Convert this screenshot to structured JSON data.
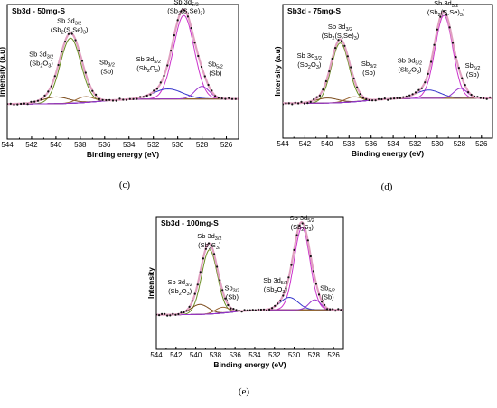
{
  "chart_data": [
    {
      "type": "line",
      "title": "Sb3d - 50mg-S",
      "caption": "(c)",
      "xlabel": "Binding energy (eV)",
      "ylabel": "Intensity (a.u)",
      "xlim": [
        544,
        525
      ],
      "x_ticks": [
        544,
        542,
        540,
        538,
        536,
        534,
        532,
        530,
        528,
        526
      ],
      "peaks": [
        {
          "center": 538.8,
          "height": 0.78,
          "width": 0.85,
          "color": "#6b8e23"
        },
        {
          "center": 529.5,
          "height": 1.0,
          "width": 0.85,
          "color": "#cc33cc"
        },
        {
          "center": 540.0,
          "height": 0.08,
          "width": 1.1,
          "color": "#7a4a1a"
        },
        {
          "center": 530.8,
          "height": 0.12,
          "width": 1.2,
          "color": "#3333cc"
        },
        {
          "center": 537.6,
          "height": 0.07,
          "width": 0.7,
          "color": "#996633"
        },
        {
          "center": 528.0,
          "height": 0.15,
          "width": 0.6,
          "color": "#9933cc"
        }
      ],
      "annotations": [
        {
          "line1": "Sb 3d",
          "sub1": "3/2",
          "line2": "(Sb",
          "sub2": "2",
          "line2b": "(S,Se)",
          "sub2b": "3",
          "line2c": ")",
          "x": 538.9,
          "y": 1.02
        },
        {
          "line1": "Sb 3d",
          "sub1": "5/2",
          "line2": "(Sb",
          "sub2": "2",
          "line2b": "(S,Se)",
          "sub2b": "3",
          "line2c": ")",
          "x": 529.3,
          "y": 1.25
        },
        {
          "line1": "Sb 3d",
          "sub1": "3/2",
          "line2": "(Sb",
          "sub2": "2",
          "line2b": "O",
          "sub2b": "3",
          "line2c": ")",
          "x": 541.2,
          "y": 0.62
        },
        {
          "line1": "Sb",
          "sub1": "3/2",
          "line2": "(Sb)",
          "sub2": "",
          "line2b": "",
          "sub2b": "",
          "line2c": "",
          "x": 535.8,
          "y": 0.52
        },
        {
          "line1": "Sb 3d",
          "sub1": "5/2",
          "line2": "(Sb",
          "sub2": "2",
          "line2b": "O",
          "sub2b": "3",
          "line2c": ")",
          "x": 532.4,
          "y": 0.56
        },
        {
          "line1": "Sb",
          "sub1": "5/2",
          "line2": "(Sb)",
          "sub2": "",
          "line2b": "",
          "sub2b": "",
          "line2c": "",
          "x": 526.9,
          "y": 0.5
        }
      ]
    },
    {
      "type": "line",
      "title": "Sb3d - 75mg-S",
      "caption": "(d)",
      "xlabel": "Binding energy (eV)",
      "ylabel": "Intensity (a.u)",
      "xlim": [
        544,
        525
      ],
      "x_ticks": [
        544,
        542,
        540,
        538,
        536,
        534,
        532,
        530,
        528,
        526
      ],
      "peaks": [
        {
          "center": 538.8,
          "height": 0.72,
          "width": 0.8,
          "color": "#6b8e23"
        },
        {
          "center": 529.4,
          "height": 1.0,
          "width": 0.8,
          "color": "#cc33cc"
        },
        {
          "center": 540.0,
          "height": 0.06,
          "width": 1.0,
          "color": "#7a4a1a"
        },
        {
          "center": 530.8,
          "height": 0.1,
          "width": 1.1,
          "color": "#3333cc"
        },
        {
          "center": 537.6,
          "height": 0.06,
          "width": 0.7,
          "color": "#996633"
        },
        {
          "center": 527.9,
          "height": 0.12,
          "width": 0.6,
          "color": "#9933cc"
        }
      ],
      "annotations": [
        {
          "line1": "Sb 3d",
          "sub1": "3/2",
          "line2": "(Sb",
          "sub2": "2",
          "line2b": "(S,Se)",
          "sub2b": "3",
          "line2c": ")",
          "x": 538.8,
          "y": 0.95
        },
        {
          "line1": "Sb 3d",
          "sub1": "5/2",
          "line2": "(Sb",
          "sub2": "2",
          "line2b": "(S,Se)",
          "sub2b": "3",
          "line2c": ")",
          "x": 529.2,
          "y": 1.23
        },
        {
          "line1": "Sb 3d",
          "sub1": "3/2",
          "line2": "(Sb",
          "sub2": "2",
          "line2b": "O",
          "sub2b": "3",
          "line2c": ")",
          "x": 541.6,
          "y": 0.6
        },
        {
          "line1": "Sb",
          "sub1": "3/2",
          "line2": "(Sb)",
          "sub2": "",
          "line2b": "",
          "sub2b": "",
          "line2c": "",
          "x": 536.2,
          "y": 0.5
        },
        {
          "line1": "Sb 3d",
          "sub1": "5/2",
          "line2": "(Sb",
          "sub2": "2",
          "line2b": "O",
          "sub2b": "3",
          "line2c": ")",
          "x": 532.5,
          "y": 0.54
        },
        {
          "line1": "Sb",
          "sub1": "5/2",
          "line2": "(Sb)",
          "sub2": "",
          "line2b": "",
          "sub2b": "",
          "line2c": "",
          "x": 526.8,
          "y": 0.48
        }
      ]
    },
    {
      "type": "line",
      "title": "Sb3d - 100mg-S",
      "caption": "(e)",
      "xlabel": "Binding energy (eV)",
      "ylabel": "Intensity",
      "xlim": [
        544,
        525
      ],
      "x_ticks": [
        544,
        542,
        540,
        538,
        536,
        534,
        532,
        530,
        528,
        526
      ],
      "peaks": [
        {
          "center": 538.6,
          "height": 0.78,
          "width": 0.8,
          "color": "#6b8e23"
        },
        {
          "center": 529.2,
          "height": 1.0,
          "width": 0.8,
          "color": "#cc33cc"
        },
        {
          "center": 539.6,
          "height": 0.12,
          "width": 0.9,
          "color": "#7a4a1a"
        },
        {
          "center": 530.5,
          "height": 0.15,
          "width": 0.9,
          "color": "#3333cc"
        },
        {
          "center": 537.3,
          "height": 0.07,
          "width": 0.7,
          "color": "#996633"
        },
        {
          "center": 527.9,
          "height": 0.12,
          "width": 0.6,
          "color": "#9933cc"
        }
      ],
      "annotations": [
        {
          "line1": "Sb 3d",
          "sub1": "3/2",
          "line2": "(Sb",
          "sub2": "2",
          "line2b": "S",
          "sub2b": "3",
          "line2c": ")",
          "x": 538.6,
          "y": 0.98
        },
        {
          "line1": "Sb 3d",
          "sub1": "5/2",
          "line2": "(Sb",
          "sub2": "2",
          "line2b": "S",
          "sub2b": "3",
          "line2c": ")",
          "x": 529.2,
          "y": 1.2
        },
        {
          "line1": "Sb 3d",
          "sub1": "3/2",
          "line2": "(Sb",
          "sub2": "2",
          "line2b": "O",
          "sub2b": "3",
          "line2c": ")",
          "x": 541.6,
          "y": 0.42
        },
        {
          "line1": "Sb",
          "sub1": "3/2",
          "line2": "(Sb)",
          "sub2": "",
          "line2b": "",
          "sub2b": "",
          "line2c": "",
          "x": 536.3,
          "y": 0.35
        },
        {
          "line1": "Sb 3d",
          "sub1": "5/2",
          "line2": "(Sb",
          "sub2": "2",
          "line2b": "O",
          "sub2b": "3",
          "line2c": ")",
          "x": 531.9,
          "y": 0.44
        },
        {
          "line1": "Sb",
          "sub1": "5/2",
          "line2": "(Sb)",
          "sub2": "",
          "line2b": "",
          "sub2b": "",
          "line2c": "",
          "x": 526.6,
          "y": 0.35
        }
      ]
    }
  ]
}
